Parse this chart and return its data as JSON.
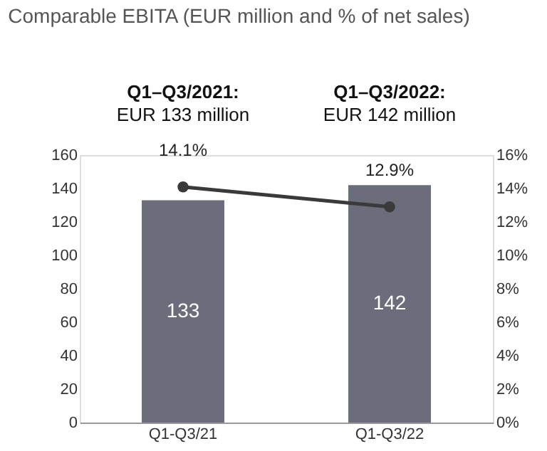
{
  "chart_data": {
    "type": "bar",
    "title": "Comparable EBITA (EUR million and % of net sales)",
    "annotations": [
      "Q1–Q3/2021:",
      "EUR 133 million",
      "Q1–Q3/2022:",
      "EUR 142 million"
    ],
    "categories": [
      "Q1-Q3/21",
      "Q1-Q3/22"
    ],
    "series": [
      {
        "color": "#6b6e7a",
        "values": [
          133,
          142
        ],
        "value_labels": [
          "133",
          "142"
        ]
      },
      {
        "type": "line",
        "axis": "y2",
        "color": "#3a3a3a",
        "values": [
          14.1,
          12.9
        ],
        "value_labels": [
          "14.1%",
          "12.9%"
        ],
        "marker": "circle"
      }
    ],
    "ylim": [
      0,
      160
    ],
    "yticks": [
      0,
      20,
      40,
      60,
      80,
      100,
      120,
      140,
      160
    ],
    "y2lim": [
      0,
      16
    ],
    "y2ticks": [
      {
        "value": 0,
        "label": "0%"
      },
      {
        "value": 2,
        "label": "2%"
      },
      {
        "value": 4,
        "label": "4%"
      },
      {
        "value": 6,
        "label": "6%"
      },
      {
        "value": 8,
        "label": "8%"
      },
      {
        "value": 10,
        "label": "10%"
      },
      {
        "value": 12,
        "label": "12%"
      },
      {
        "value": 14,
        "label": "14%"
      },
      {
        "value": 16,
        "label": "16%"
      }
    ],
    "grid": false
  }
}
